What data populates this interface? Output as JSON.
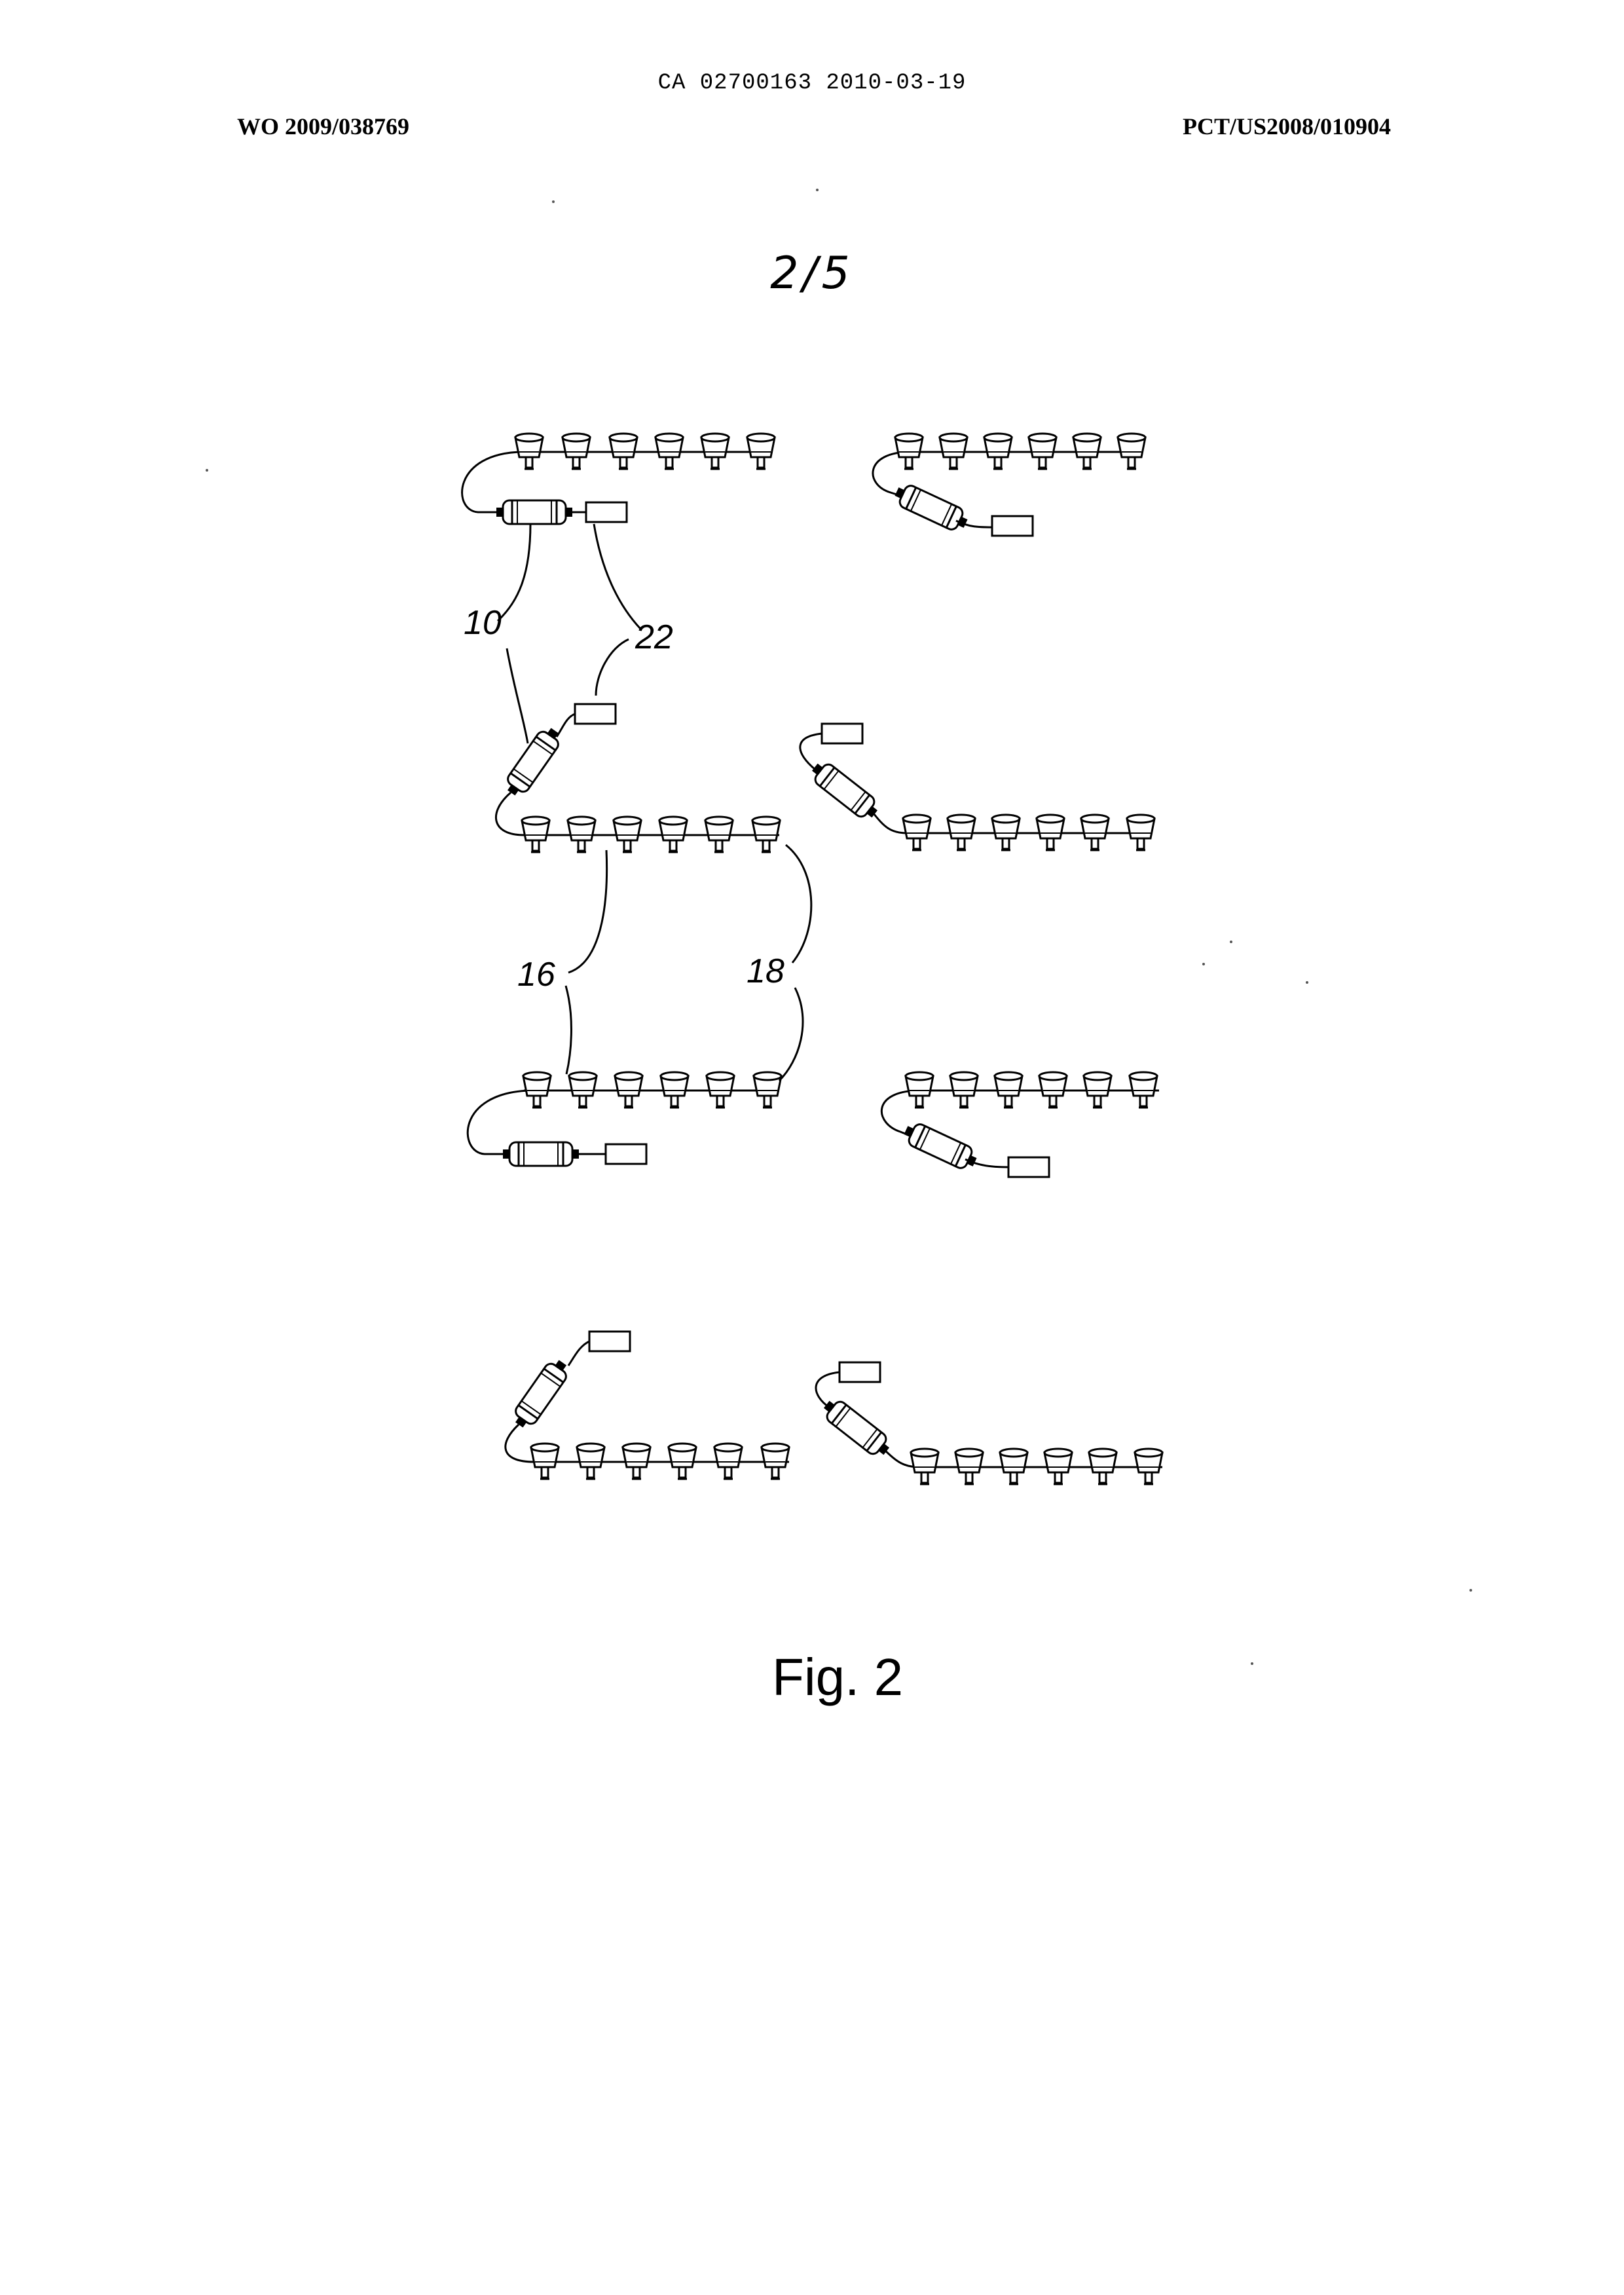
{
  "header": {
    "top_center": "CA 02700163 2010-03-19",
    "left": "WO 2009/038769",
    "right": "PCT/US2008/010904"
  },
  "sheet_number": "2/5",
  "figure_label": "Fig. 2",
  "reference_numerals": {
    "r10": "10",
    "r22": "22",
    "r16": "16",
    "r18": "18"
  }
}
